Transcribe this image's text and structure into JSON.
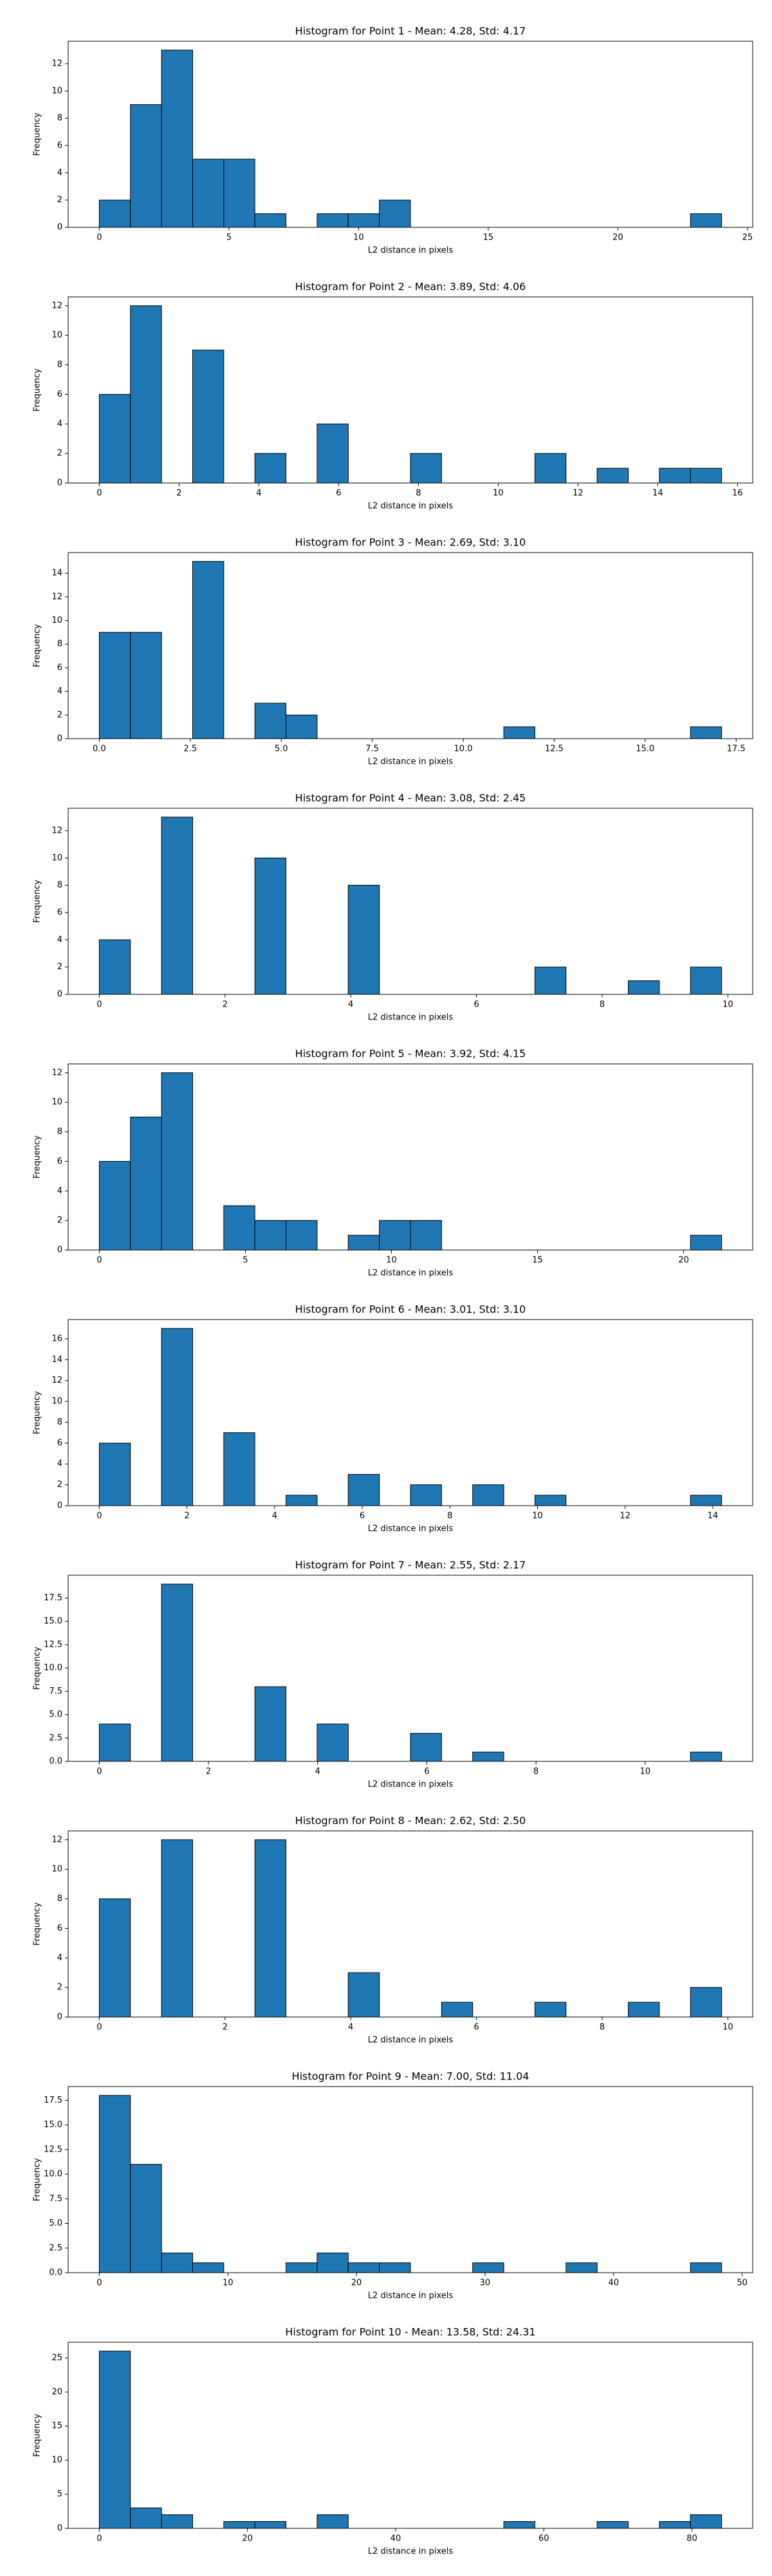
{
  "chart_data": [
    {
      "type": "histogram",
      "title": "Histogram for Point 1 - Mean: 4.28, Std: 4.17",
      "xlabel": "L2 distance in pixels",
      "ylabel": "Frequency",
      "color": "#1f77b4",
      "edgecolor": "#000000",
      "bins": [
        0,
        1.2,
        2.4,
        3.6,
        4.8,
        6,
        7.2,
        8.4,
        9.6,
        10.8,
        12,
        13.2,
        14.4,
        15.6,
        16.8,
        18,
        19.2,
        20.4,
        21.6,
        22.8,
        24
      ],
      "values": [
        2,
        9,
        13,
        5,
        5,
        1,
        0,
        1,
        1,
        2,
        0,
        0,
        0,
        0,
        0,
        0,
        0,
        0,
        0,
        1
      ],
      "xlim": [
        -1.2,
        25.2
      ],
      "xticks": [
        0,
        5,
        10,
        15,
        20,
        25
      ],
      "ylim": [
        0,
        13.65
      ],
      "yticks": [
        0,
        2,
        4,
        6,
        8,
        10,
        12
      ]
    },
    {
      "type": "histogram",
      "title": "Histogram for Point 2 - Mean: 3.89, Std: 4.06",
      "xlabel": "L2 distance in pixels",
      "ylabel": "Frequency",
      "color": "#1f77b4",
      "edgecolor": "#000000",
      "bins": [
        0,
        0.78,
        1.56,
        2.34,
        3.12,
        3.9,
        4.68,
        5.46,
        6.24,
        7.02,
        7.8,
        8.58,
        9.36,
        10.14,
        10.92,
        11.7,
        12.48,
        13.26,
        14.04,
        14.82,
        15.6
      ],
      "values": [
        6,
        12,
        0,
        9,
        0,
        2,
        0,
        4,
        0,
        0,
        2,
        0,
        0,
        0,
        2,
        0,
        1,
        0,
        1,
        1
      ],
      "xlim": [
        -0.78,
        16.38
      ],
      "xticks": [
        0,
        2,
        4,
        6,
        8,
        10,
        12,
        14,
        16
      ],
      "ylim": [
        0,
        12.6
      ],
      "yticks": [
        0,
        2,
        4,
        6,
        8,
        10,
        12
      ]
    },
    {
      "type": "histogram",
      "title": "Histogram for Point 3 - Mean: 2.69, Std: 3.10",
      "xlabel": "L2 distance in pixels",
      "ylabel": "Frequency",
      "color": "#1f77b4",
      "edgecolor": "#000000",
      "bins": [
        0,
        0.855,
        1.71,
        2.565,
        3.42,
        4.275,
        5.13,
        5.985,
        6.84,
        7.695,
        8.55,
        9.405,
        10.26,
        11.115,
        11.97,
        12.825,
        13.68,
        14.535,
        15.39,
        16.245,
        17.1
      ],
      "values": [
        9,
        9,
        0,
        15,
        0,
        3,
        2,
        0,
        0,
        0,
        0,
        0,
        0,
        1,
        0,
        0,
        0,
        0,
        0,
        1
      ],
      "xlim": [
        -0.855,
        17.955
      ],
      "xticks": [
        {
          "value": 0,
          "label": "0.0"
        },
        {
          "value": 2.5,
          "label": "2.5"
        },
        {
          "value": 5,
          "label": "5.0"
        },
        {
          "value": 7.5,
          "label": "7.5"
        },
        {
          "value": 10,
          "label": "10.0"
        },
        {
          "value": 12.5,
          "label": "12.5"
        },
        {
          "value": 15,
          "label": "15.0"
        },
        {
          "value": 17.5,
          "label": "17.5"
        }
      ],
      "ylim": [
        0,
        15.75
      ],
      "yticks": [
        0,
        2,
        4,
        6,
        8,
        10,
        12,
        14
      ]
    },
    {
      "type": "histogram",
      "title": "Histogram for Point 4 - Mean: 3.08, Std: 2.45",
      "xlabel": "L2 distance in pixels",
      "ylabel": "Frequency",
      "color": "#1f77b4",
      "edgecolor": "#000000",
      "bins": [
        0,
        0.495,
        0.99,
        1.485,
        1.98,
        2.475,
        2.97,
        3.465,
        3.96,
        4.455,
        4.95,
        5.445,
        5.94,
        6.435,
        6.93,
        7.425,
        7.92,
        8.415,
        8.91,
        9.405,
        9.9
      ],
      "values": [
        4,
        0,
        13,
        0,
        0,
        10,
        0,
        0,
        8,
        0,
        0,
        0,
        0,
        0,
        2,
        0,
        0,
        1,
        0,
        2
      ],
      "xlim": [
        -0.495,
        10.395
      ],
      "xticks": [
        0,
        2,
        4,
        6,
        8,
        10
      ],
      "ylim": [
        0,
        13.65
      ],
      "yticks": [
        0,
        2,
        4,
        6,
        8,
        10,
        12
      ]
    },
    {
      "type": "histogram",
      "title": "Histogram for Point 5 - Mean: 3.92, Std: 4.15",
      "xlabel": "L2 distance in pixels",
      "ylabel": "Frequency",
      "color": "#1f77b4",
      "edgecolor": "#000000",
      "bins": [
        0,
        1.065,
        2.13,
        3.195,
        4.26,
        5.325,
        6.39,
        7.455,
        8.52,
        9.585,
        10.65,
        11.715,
        12.78,
        13.845,
        14.91,
        15.975,
        17.04,
        18.105,
        19.17,
        20.235,
        21.3
      ],
      "values": [
        6,
        9,
        12,
        0,
        3,
        2,
        2,
        0,
        1,
        2,
        2,
        0,
        0,
        0,
        0,
        0,
        0,
        0,
        0,
        1
      ],
      "xlim": [
        -1.065,
        22.365
      ],
      "xticks": [
        0,
        5,
        10,
        15,
        20
      ],
      "ylim": [
        0,
        12.6
      ],
      "yticks": [
        0,
        2,
        4,
        6,
        8,
        10,
        12
      ]
    },
    {
      "type": "histogram",
      "title": "Histogram for Point 6 - Mean: 3.01, Std: 3.10",
      "xlabel": "L2 distance in pixels",
      "ylabel": "Frequency",
      "color": "#1f77b4",
      "edgecolor": "#000000",
      "bins": [
        0,
        0.71,
        1.42,
        2.13,
        2.84,
        3.55,
        4.26,
        4.97,
        5.68,
        6.39,
        7.1,
        7.81,
        8.52,
        9.23,
        9.94,
        10.65,
        11.36,
        12.07,
        12.78,
        13.49,
        14.2
      ],
      "values": [
        6,
        0,
        17,
        0,
        7,
        0,
        1,
        0,
        3,
        0,
        2,
        0,
        2,
        0,
        1,
        0,
        0,
        0,
        0,
        1
      ],
      "xlim": [
        -0.71,
        14.91
      ],
      "xticks": [
        0,
        2,
        4,
        6,
        8,
        10,
        12,
        14
      ],
      "ylim": [
        0,
        17.85
      ],
      "yticks": [
        0,
        2,
        4,
        6,
        8,
        10,
        12,
        14,
        16
      ]
    },
    {
      "type": "histogram",
      "title": "Histogram for Point 7 - Mean: 2.55, Std: 2.17",
      "xlabel": "L2 distance in pixels",
      "ylabel": "Frequency",
      "color": "#1f77b4",
      "edgecolor": "#000000",
      "bins": [
        0,
        0.57,
        1.14,
        1.71,
        2.28,
        2.85,
        3.42,
        3.99,
        4.56,
        5.13,
        5.7,
        6.27,
        6.84,
        7.41,
        7.98,
        8.55,
        9.12,
        9.69,
        10.26,
        10.83,
        11.4
      ],
      "values": [
        4,
        0,
        19,
        0,
        0,
        8,
        0,
        4,
        0,
        0,
        3,
        0,
        1,
        0,
        0,
        0,
        0,
        0,
        0,
        1
      ],
      "xlim": [
        -0.57,
        11.97
      ],
      "xticks": [
        0,
        2,
        4,
        6,
        8,
        10
      ],
      "ylim": [
        0,
        19.95
      ],
      "yticks": [
        {
          "value": 0,
          "label": "0.0"
        },
        {
          "value": 2.5,
          "label": "2.5"
        },
        {
          "value": 5,
          "label": "5.0"
        },
        {
          "value": 7.5,
          "label": "7.5"
        },
        {
          "value": 10,
          "label": "10.0"
        },
        {
          "value": 12.5,
          "label": "12.5"
        },
        {
          "value": 15,
          "label": "15.0"
        },
        {
          "value": 17.5,
          "label": "17.5"
        }
      ]
    },
    {
      "type": "histogram",
      "title": "Histogram for Point 8 - Mean: 2.62, Std: 2.50",
      "xlabel": "L2 distance in pixels",
      "ylabel": "Frequency",
      "color": "#1f77b4",
      "edgecolor": "#000000",
      "bins": [
        0,
        0.495,
        0.99,
        1.485,
        1.98,
        2.475,
        2.97,
        3.465,
        3.96,
        4.455,
        4.95,
        5.445,
        5.94,
        6.435,
        6.93,
        7.425,
        7.92,
        8.415,
        8.91,
        9.405,
        9.9
      ],
      "values": [
        8,
        0,
        12,
        0,
        0,
        12,
        0,
        0,
        3,
        0,
        0,
        1,
        0,
        0,
        1,
        0,
        0,
        1,
        0,
        2
      ],
      "xlim": [
        -0.495,
        10.395
      ],
      "xticks": [
        0,
        2,
        4,
        6,
        8,
        10
      ],
      "ylim": [
        0,
        12.6
      ],
      "yticks": [
        0,
        2,
        4,
        6,
        8,
        10,
        12
      ]
    },
    {
      "type": "histogram",
      "title": "Histogram for Point 9 - Mean: 7.00, Std: 11.04",
      "xlabel": "L2 distance in pixels",
      "ylabel": "Frequency",
      "color": "#1f77b4",
      "edgecolor": "#000000",
      "bins": [
        0,
        2.42,
        4.84,
        7.26,
        9.68,
        12.1,
        14.52,
        16.94,
        19.36,
        21.78,
        24.2,
        26.62,
        29.04,
        31.46,
        33.88,
        36.3,
        38.72,
        41.14,
        43.56,
        45.98,
        48.4
      ],
      "values": [
        18,
        11,
        2,
        1,
        0,
        0,
        1,
        2,
        1,
        1,
        0,
        0,
        1,
        0,
        0,
        1,
        0,
        0,
        0,
        1
      ],
      "xlim": [
        -2.42,
        50.82
      ],
      "xticks": [
        0,
        10,
        20,
        30,
        40,
        50
      ],
      "ylim": [
        0,
        18.9
      ],
      "yticks": [
        {
          "value": 0,
          "label": "0.0"
        },
        {
          "value": 2.5,
          "label": "2.5"
        },
        {
          "value": 5,
          "label": "5.0"
        },
        {
          "value": 7.5,
          "label": "7.5"
        },
        {
          "value": 10,
          "label": "10.0"
        },
        {
          "value": 12.5,
          "label": "12.5"
        },
        {
          "value": 15,
          "label": "15.0"
        },
        {
          "value": 17.5,
          "label": "17.5"
        }
      ]
    },
    {
      "type": "histogram",
      "title": "Histogram for Point 10 - Mean: 13.58, Std: 24.31",
      "xlabel": "L2 distance in pixels",
      "ylabel": "Frequency",
      "color": "#1f77b4",
      "edgecolor": "#000000",
      "bins": [
        0,
        4.2,
        8.4,
        12.6,
        16.8,
        21,
        25.2,
        29.4,
        33.6,
        37.8,
        42,
        46.2,
        50.4,
        54.6,
        58.8,
        63,
        67.2,
        71.4,
        75.6,
        79.8,
        84
      ],
      "values": [
        26,
        3,
        2,
        0,
        1,
        1,
        0,
        2,
        0,
        0,
        0,
        0,
        0,
        1,
        0,
        0,
        1,
        0,
        1,
        2
      ],
      "xlim": [
        -4.2,
        88.2
      ],
      "xticks": [
        0,
        20,
        40,
        60,
        80
      ],
      "ylim": [
        0,
        27.3
      ],
      "yticks": [
        0,
        5,
        10,
        15,
        20,
        25
      ]
    }
  ]
}
